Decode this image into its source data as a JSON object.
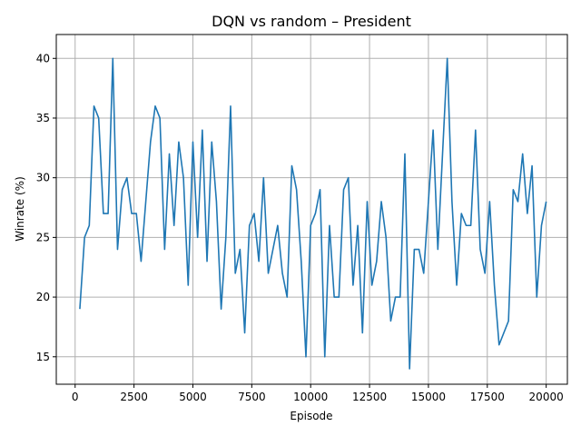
{
  "chart_data": {
    "type": "line",
    "title": "DQN vs random – President",
    "xlabel": "Episode",
    "ylabel": "Winrate (%)",
    "xlim": [
      -800,
      20900
    ],
    "ylim": [
      12.7,
      42.0
    ],
    "xticks": [
      0,
      2500,
      5000,
      7500,
      10000,
      12500,
      15000,
      17500,
      20000
    ],
    "yticks": [
      15,
      20,
      25,
      30,
      35,
      40
    ],
    "grid": true,
    "series": [
      {
        "color": "#1f77b4",
        "x": [
          200,
          400,
          600,
          800,
          1000,
          1200,
          1400,
          1600,
          1800,
          2000,
          2200,
          2400,
          2600,
          2800,
          3000,
          3200,
          3400,
          3600,
          3800,
          4000,
          4200,
          4400,
          4600,
          4800,
          5000,
          5200,
          5400,
          5600,
          5800,
          6000,
          6200,
          6400,
          6600,
          6800,
          7000,
          7200,
          7400,
          7600,
          7800,
          8000,
          8200,
          8400,
          8600,
          8800,
          9000,
          9200,
          9400,
          9600,
          9800,
          10000,
          10200,
          10400,
          10600,
          10800,
          11000,
          11200,
          11400,
          11600,
          11800,
          12000,
          12200,
          12400,
          12600,
          12800,
          13000,
          13200,
          13400,
          13600,
          13800,
          14000,
          14200,
          14400,
          14600,
          14800,
          15000,
          15200,
          15400,
          15600,
          15800,
          16000,
          16200,
          16400,
          16600,
          16800,
          17000,
          17200,
          17400,
          17600,
          17800,
          18000,
          18200,
          18400,
          18600,
          18800,
          19000,
          19200,
          19400,
          19600,
          19800,
          20000
        ],
        "y": [
          19,
          25,
          26,
          36,
          35,
          27,
          27,
          40,
          24,
          29,
          30,
          27,
          27,
          23,
          28,
          33,
          36,
          35,
          24,
          32,
          26,
          33,
          30,
          21,
          33,
          25,
          34,
          23,
          33,
          28,
          19,
          25,
          36,
          22,
          24,
          17,
          26,
          27,
          23,
          30,
          22,
          24,
          26,
          22,
          20,
          31,
          29,
          23,
          15,
          26,
          27,
          29,
          15,
          26,
          20,
          20,
          29,
          30,
          21,
          26,
          17,
          28,
          21,
          23,
          28,
          25,
          18,
          20,
          20,
          32,
          14,
          24,
          24,
          22,
          28,
          34,
          24,
          32,
          40,
          28,
          21,
          27,
          26,
          26,
          34,
          24,
          22,
          28,
          21,
          16,
          17,
          18,
          29,
          28,
          32,
          27,
          31,
          20,
          26,
          28
        ]
      }
    ]
  }
}
